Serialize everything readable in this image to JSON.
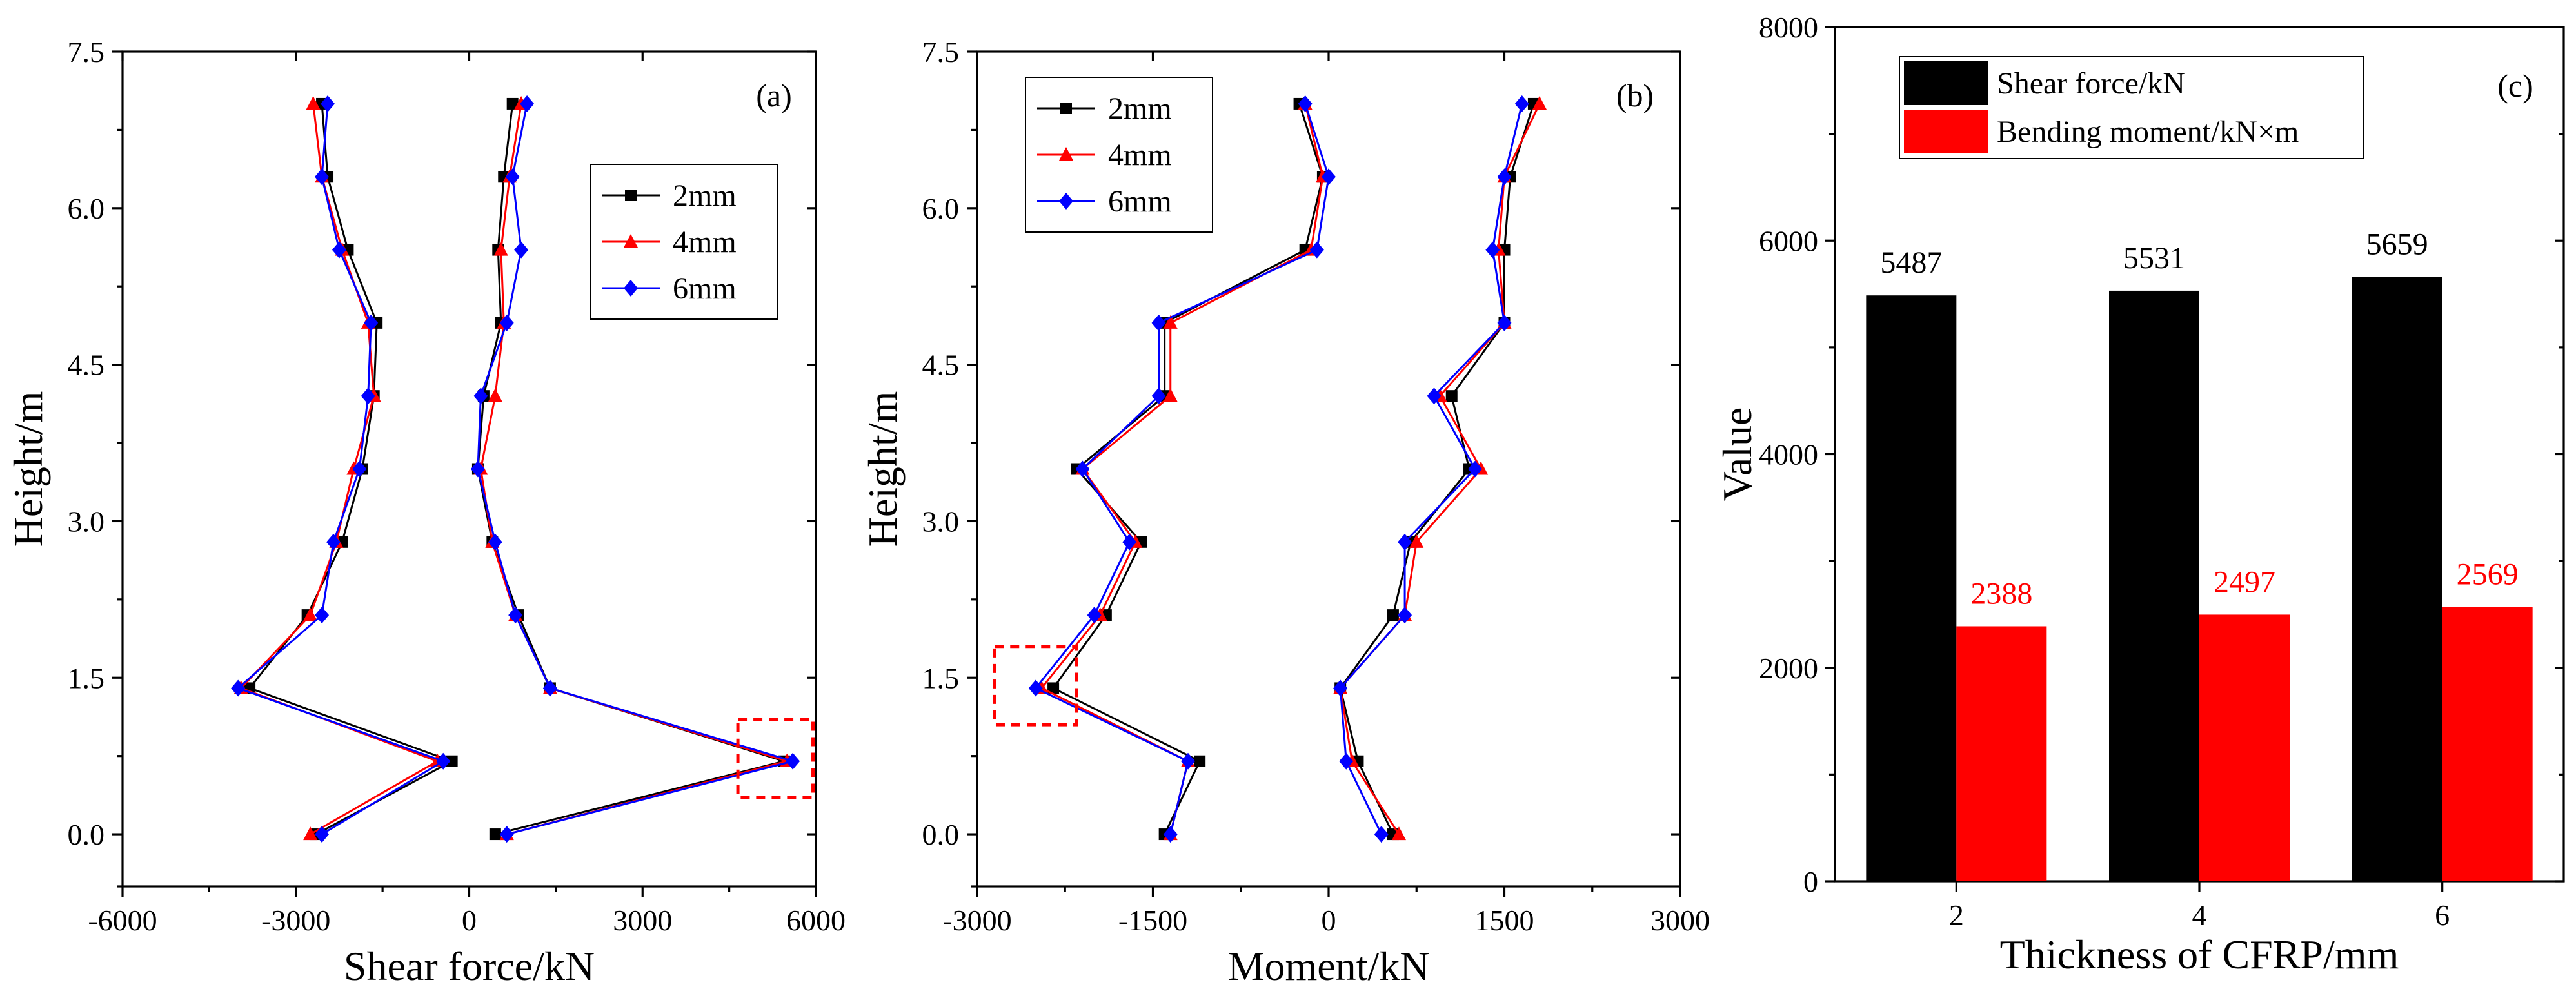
{
  "chart_data": [
    {
      "panel": "(a)",
      "type": "line",
      "xlabel": "Shear force/kN",
      "ylabel": "Height/m",
      "xlim": [
        -6000,
        6000
      ],
      "ylim": [
        -0.5,
        7.5
      ],
      "xticks": [
        -6000,
        -3000,
        0,
        3000,
        6000
      ],
      "xtick_labels": [
        "-6000",
        "-3000",
        "0",
        "3000",
        "6000"
      ],
      "yticks": [
        0,
        1.5,
        3,
        4.5,
        6,
        7.5
      ],
      "ytick_labels": [
        "0.0",
        "1.5",
        "3.0",
        "4.5",
        "6.0",
        "7.5"
      ],
      "legend_position": "top-right",
      "annotation": "dashed red box around peak near x≈5300, y≈0.7",
      "series": [
        {
          "name": "2mm",
          "color": "#000000",
          "marker": "square",
          "lines": [
            [
              [
                -2650,
                0
              ],
              [
                -300,
                0.7
              ],
              [
                -3800,
                1.4
              ],
              [
                -2800,
                2.1
              ],
              [
                -2200,
                2.8
              ],
              [
                -1850,
                3.5
              ],
              [
                -1650,
                4.2
              ],
              [
                -1600,
                4.9
              ],
              [
                -2100,
                5.6
              ],
              [
                -2450,
                6.3
              ],
              [
                -2550,
                7.0
              ]
            ],
            [
              [
                450,
                0
              ],
              [
                5450,
                0.7
              ],
              [
                1400,
                1.4
              ],
              [
                850,
                2.1
              ],
              [
                400,
                2.8
              ],
              [
                150,
                3.5
              ],
              [
                250,
                4.2
              ],
              [
                550,
                4.9
              ],
              [
                500,
                5.6
              ],
              [
                600,
                6.3
              ],
              [
                750,
                7.0
              ]
            ]
          ]
        },
        {
          "name": "4mm",
          "color": "#ff0000",
          "marker": "triangle",
          "lines": [
            [
              [
                -2750,
                0
              ],
              [
                -550,
                0.7
              ],
              [
                -3950,
                1.4
              ],
              [
                -2750,
                2.1
              ],
              [
                -2300,
                2.8
              ],
              [
                -2000,
                3.5
              ],
              [
                -1650,
                4.2
              ],
              [
                -1750,
                4.9
              ],
              [
                -2200,
                5.6
              ],
              [
                -2550,
                6.3
              ],
              [
                -2700,
                7.0
              ]
            ],
            [
              [
                650,
                0
              ],
              [
                5500,
                0.7
              ],
              [
                1400,
                1.4
              ],
              [
                800,
                2.1
              ],
              [
                400,
                2.8
              ],
              [
                200,
                3.5
              ],
              [
                450,
                4.2
              ],
              [
                600,
                4.9
              ],
              [
                550,
                5.6
              ],
              [
                700,
                6.3
              ],
              [
                900,
                7.0
              ]
            ]
          ]
        },
        {
          "name": "6mm",
          "color": "#0000ff",
          "marker": "diamond",
          "lines": [
            [
              [
                -2550,
                0
              ],
              [
                -450,
                0.7
              ],
              [
                -4000,
                1.4
              ],
              [
                -2550,
                2.1
              ],
              [
                -2350,
                2.8
              ],
              [
                -1900,
                3.5
              ],
              [
                -1750,
                4.2
              ],
              [
                -1700,
                4.9
              ],
              [
                -2250,
                5.6
              ],
              [
                -2550,
                6.3
              ],
              [
                -2450,
                7.0
              ]
            ],
            [
              [
                650,
                0
              ],
              [
                5600,
                0.7
              ],
              [
                1400,
                1.4
              ],
              [
                800,
                2.1
              ],
              [
                450,
                2.8
              ],
              [
                150,
                3.5
              ],
              [
                200,
                4.2
              ],
              [
                650,
                4.9
              ],
              [
                900,
                5.6
              ],
              [
                750,
                6.3
              ],
              [
                1000,
                7.0
              ]
            ]
          ]
        }
      ]
    },
    {
      "panel": "(b)",
      "type": "line",
      "xlabel": "Moment/kN",
      "ylabel": "Height/m",
      "xlim": [
        -3000,
        3000
      ],
      "ylim": [
        -0.5,
        7.5
      ],
      "xticks": [
        -3000,
        -1500,
        0,
        1500,
        3000
      ],
      "xtick_labels": [
        "-3000",
        "-1500",
        "0",
        "1500",
        "3000"
      ],
      "yticks": [
        0,
        1.5,
        3,
        4.5,
        6,
        7.5
      ],
      "ytick_labels": [
        "0.0",
        "1.5",
        "3.0",
        "4.5",
        "6.0",
        "7.5"
      ],
      "legend_position": "top-left",
      "annotation": "dashed red box around trough near x≈-2350, y≈1.4",
      "series": [
        {
          "name": "2mm",
          "color": "#000000",
          "marker": "square",
          "lines": [
            [
              [
                -1400,
                0
              ],
              [
                -1100,
                0.7
              ],
              [
                -2350,
                1.4
              ],
              [
                -1900,
                2.1
              ],
              [
                -1600,
                2.8
              ],
              [
                -2150,
                3.5
              ],
              [
                -1400,
                4.2
              ],
              [
                -1400,
                4.9
              ],
              [
                -200,
                5.6
              ],
              [
                -50,
                6.3
              ],
              [
                -250,
                7.0
              ]
            ],
            [
              [
                550,
                0
              ],
              [
                250,
                0.7
              ],
              [
                100,
                1.4
              ],
              [
                550,
                2.1
              ],
              [
                700,
                2.8
              ],
              [
                1200,
                3.5
              ],
              [
                1050,
                4.2
              ],
              [
                1500,
                4.9
              ],
              [
                1500,
                5.6
              ],
              [
                1550,
                6.3
              ],
              [
                1750,
                7.0
              ]
            ]
          ]
        },
        {
          "name": "4mm",
          "color": "#ff0000",
          "marker": "triangle",
          "lines": [
            [
              [
                -1350,
                0
              ],
              [
                -1200,
                0.7
              ],
              [
                -2450,
                1.4
              ],
              [
                -1950,
                2.1
              ],
              [
                -1650,
                2.8
              ],
              [
                -2100,
                3.5
              ],
              [
                -1350,
                4.2
              ],
              [
                -1350,
                4.9
              ],
              [
                -150,
                5.6
              ],
              [
                -50,
                6.3
              ],
              [
                -200,
                7.0
              ]
            ],
            [
              [
                600,
                0
              ],
              [
                200,
                0.7
              ],
              [
                100,
                1.4
              ],
              [
                650,
                2.1
              ],
              [
                750,
                2.8
              ],
              [
                1300,
                3.5
              ],
              [
                950,
                4.2
              ],
              [
                1500,
                4.9
              ],
              [
                1450,
                5.6
              ],
              [
                1500,
                6.3
              ],
              [
                1800,
                7.0
              ]
            ]
          ]
        },
        {
          "name": "6mm",
          "color": "#0000ff",
          "marker": "diamond",
          "lines": [
            [
              [
                -1350,
                0
              ],
              [
                -1200,
                0.7
              ],
              [
                -2500,
                1.4
              ],
              [
                -2000,
                2.1
              ],
              [
                -1700,
                2.8
              ],
              [
                -2100,
                3.5
              ],
              [
                -1450,
                4.2
              ],
              [
                -1450,
                4.9
              ],
              [
                -100,
                5.6
              ],
              [
                0,
                6.3
              ],
              [
                -200,
                7.0
              ]
            ],
            [
              [
                450,
                0
              ],
              [
                150,
                0.7
              ],
              [
                100,
                1.4
              ],
              [
                650,
                2.1
              ],
              [
                650,
                2.8
              ],
              [
                1250,
                3.5
              ],
              [
                900,
                4.2
              ],
              [
                1500,
                4.9
              ],
              [
                1400,
                5.6
              ],
              [
                1500,
                6.3
              ],
              [
                1650,
                7.0
              ]
            ]
          ]
        }
      ]
    },
    {
      "panel": "(c)",
      "type": "bar",
      "xlabel": "Thickness of CFRP/mm",
      "ylabel": "Value",
      "categories": [
        "2",
        "4",
        "6"
      ],
      "ylim": [
        0,
        8000
      ],
      "yticks": [
        0,
        2000,
        4000,
        6000,
        8000
      ],
      "ytick_labels": [
        "0",
        "2000",
        "4000",
        "6000",
        "8000"
      ],
      "legend_position": "top-left",
      "series": [
        {
          "name": "Shear force/kN",
          "color": "#000000",
          "label_color": "#000000",
          "values": [
            5487,
            5531,
            5659
          ]
        },
        {
          "name": "Bending moment/kN×m",
          "color": "#ff0000",
          "label_color": "#ff0000",
          "values": [
            2388,
            2497,
            2569
          ]
        }
      ]
    }
  ]
}
